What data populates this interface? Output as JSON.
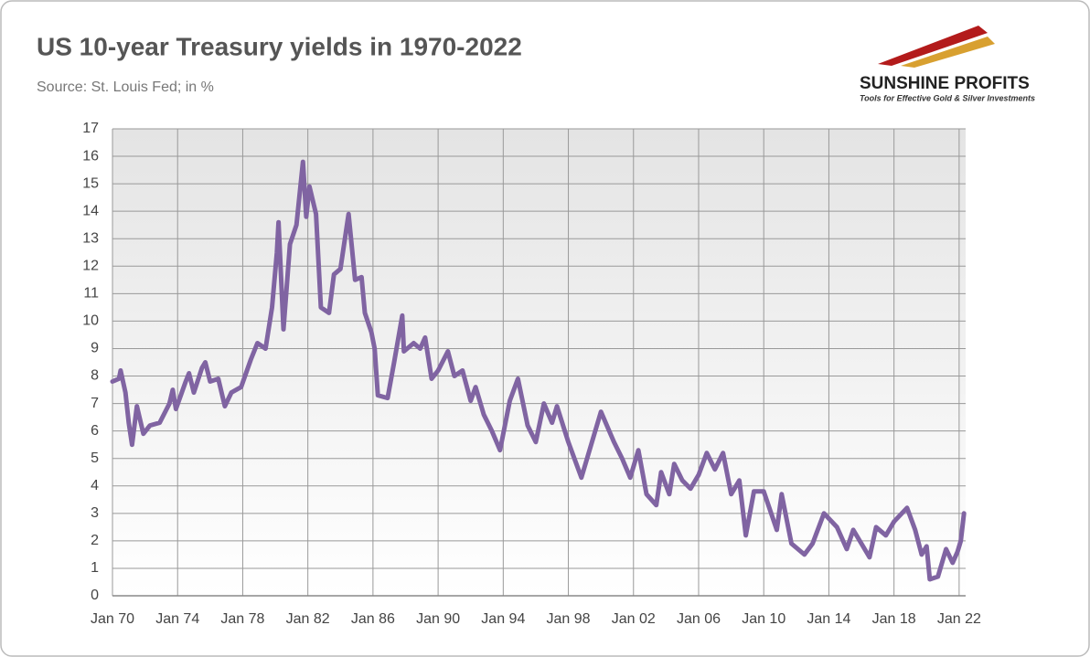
{
  "logo": {
    "name": "SUNSHINE PROFITS",
    "tagline": "Tools for Effective Gold & Silver Investments"
  },
  "chart_data": {
    "type": "line",
    "title": "US 10-year Treasury yields in 1970-2022",
    "subtitle": "Source: St. Louis Fed; in %",
    "x": [
      1970.0,
      1970.4,
      1970.5,
      1970.8,
      1971.0,
      1971.2,
      1971.5,
      1971.9,
      1972.3,
      1972.9,
      1973.5,
      1973.7,
      1973.9,
      1974.5,
      1974.7,
      1975.0,
      1975.5,
      1975.7,
      1976.0,
      1976.5,
      1976.9,
      1977.3,
      1977.9,
      1978.5,
      1978.9,
      1979.4,
      1979.8,
      1980.1,
      1980.2,
      1980.5,
      1980.9,
      1981.3,
      1981.7,
      1981.9,
      1982.1,
      1982.5,
      1982.8,
      1983.3,
      1983.6,
      1984.0,
      1984.5,
      1984.9,
      1985.3,
      1985.5,
      1985.9,
      1986.1,
      1986.3,
      1986.9,
      1987.3,
      1987.8,
      1987.9,
      1988.5,
      1988.9,
      1989.2,
      1989.6,
      1990.0,
      1990.6,
      1991.0,
      1991.5,
      1992.0,
      1992.3,
      1992.8,
      1993.3,
      1993.8,
      1994.4,
      1994.9,
      1995.5,
      1996.0,
      1996.5,
      1997.0,
      1997.3,
      1998.0,
      1998.8,
      1999.3,
      2000.0,
      2000.8,
      2001.3,
      2001.8,
      2002.3,
      2002.8,
      2003.4,
      2003.7,
      2004.2,
      2004.5,
      2005.0,
      2005.5,
      2006.0,
      2006.5,
      2007.0,
      2007.5,
      2008.0,
      2008.5,
      2008.9,
      2009.4,
      2010.0,
      2010.8,
      2011.1,
      2011.7,
      2012.5,
      2013.0,
      2013.7,
      2014.5,
      2015.1,
      2015.5,
      2016.5,
      2016.9,
      2017.5,
      2018.0,
      2018.8,
      2019.3,
      2019.7,
      2020.0,
      2020.2,
      2020.7,
      2021.2,
      2021.6,
      2021.9,
      2022.1,
      2022.3
    ],
    "series": [
      {
        "name": "US 10-year Treasury yield",
        "color": "#8064a2",
        "values": [
          7.8,
          7.9,
          8.2,
          7.4,
          6.3,
          5.5,
          6.9,
          5.9,
          6.2,
          6.3,
          7.0,
          7.5,
          6.8,
          7.8,
          8.1,
          7.4,
          8.3,
          8.5,
          7.8,
          7.9,
          6.9,
          7.4,
          7.6,
          8.6,
          9.2,
          9.0,
          10.5,
          12.5,
          13.6,
          9.7,
          12.8,
          13.5,
          15.8,
          13.8,
          14.9,
          13.9,
          10.5,
          10.3,
          11.7,
          11.9,
          13.9,
          11.5,
          11.6,
          10.3,
          9.6,
          9.0,
          7.3,
          7.2,
          8.5,
          10.2,
          8.9,
          9.2,
          9.0,
          9.4,
          7.9,
          8.2,
          8.9,
          8.0,
          8.2,
          7.1,
          7.6,
          6.6,
          6.0,
          5.3,
          7.1,
          7.9,
          6.2,
          5.6,
          7.0,
          6.3,
          6.9,
          5.6,
          4.3,
          5.3,
          6.7,
          5.6,
          5.0,
          4.3,
          5.3,
          3.7,
          3.3,
          4.5,
          3.7,
          4.8,
          4.2,
          3.9,
          4.4,
          5.2,
          4.6,
          5.2,
          3.7,
          4.2,
          2.2,
          3.8,
          3.8,
          2.4,
          3.7,
          1.9,
          1.5,
          1.9,
          3.0,
          2.5,
          1.7,
          2.4,
          1.4,
          2.5,
          2.2,
          2.7,
          3.2,
          2.4,
          1.5,
          1.8,
          0.6,
          0.7,
          1.7,
          1.2,
          1.6,
          2.0,
          3.0
        ]
      }
    ],
    "xlim": [
      1970,
      2022.4
    ],
    "xticks": [
      {
        "value": 1970,
        "label": "Jan 70"
      },
      {
        "value": 1974,
        "label": "Jan 74"
      },
      {
        "value": 1978,
        "label": "Jan 78"
      },
      {
        "value": 1982,
        "label": "Jan 82"
      },
      {
        "value": 1986,
        "label": "Jan 86"
      },
      {
        "value": 1990,
        "label": "Jan 90"
      },
      {
        "value": 1994,
        "label": "Jan 94"
      },
      {
        "value": 1998,
        "label": "Jan 98"
      },
      {
        "value": 2002,
        "label": "Jan 02"
      },
      {
        "value": 2006,
        "label": "Jan 06"
      },
      {
        "value": 2010,
        "label": "Jan 10"
      },
      {
        "value": 2014,
        "label": "Jan 14"
      },
      {
        "value": 2018,
        "label": "Jan 18"
      },
      {
        "value": 2022,
        "label": "Jan 22"
      }
    ],
    "ylim": [
      0,
      17
    ],
    "yticks": [
      0,
      1,
      2,
      3,
      4,
      5,
      6,
      7,
      8,
      9,
      10,
      11,
      12,
      13,
      14,
      15,
      16,
      17
    ],
    "grid": true
  }
}
